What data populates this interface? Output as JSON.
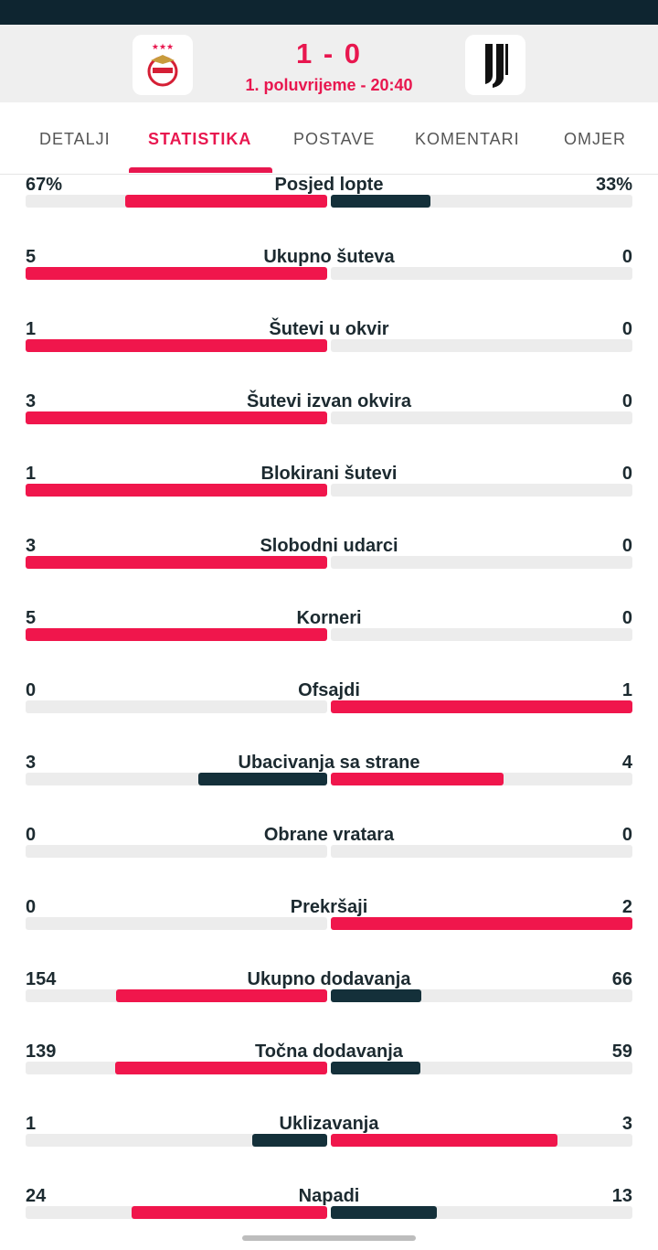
{
  "header": {
    "score": "1 - 0",
    "period": "1. poluvrijeme - 20:40"
  },
  "tabs": [
    "DETALJI",
    "STATISTIKA",
    "POSTAVE",
    "KOMENTARI",
    "OMJER"
  ],
  "active_tab": 1,
  "stats": [
    {
      "label": "Posjed lopte",
      "home": 67,
      "away": 33,
      "home_label": "67%",
      "away_label": "33%"
    },
    {
      "label": "Ukupno šuteva",
      "home": 5,
      "away": 0
    },
    {
      "label": "Šutevi u okvir",
      "home": 1,
      "away": 0
    },
    {
      "label": "Šutevi izvan okvira",
      "home": 3,
      "away": 0
    },
    {
      "label": "Blokirani šutevi",
      "home": 1,
      "away": 0
    },
    {
      "label": "Slobodni udarci",
      "home": 3,
      "away": 0
    },
    {
      "label": "Korneri",
      "home": 5,
      "away": 0
    },
    {
      "label": "Ofsajdi",
      "home": 0,
      "away": 1
    },
    {
      "label": "Ubacivanja sa strane",
      "home": 3,
      "away": 4
    },
    {
      "label": "Obrane vratara",
      "home": 0,
      "away": 0
    },
    {
      "label": "Prekršaji",
      "home": 0,
      "away": 2
    },
    {
      "label": "Ukupno dodavanja",
      "home": 154,
      "away": 66
    },
    {
      "label": "Točna dodavanja",
      "home": 139,
      "away": 59
    },
    {
      "label": "Uklizavanja",
      "home": 1,
      "away": 3
    },
    {
      "label": "Napadi",
      "home": 24,
      "away": 13
    }
  ]
}
